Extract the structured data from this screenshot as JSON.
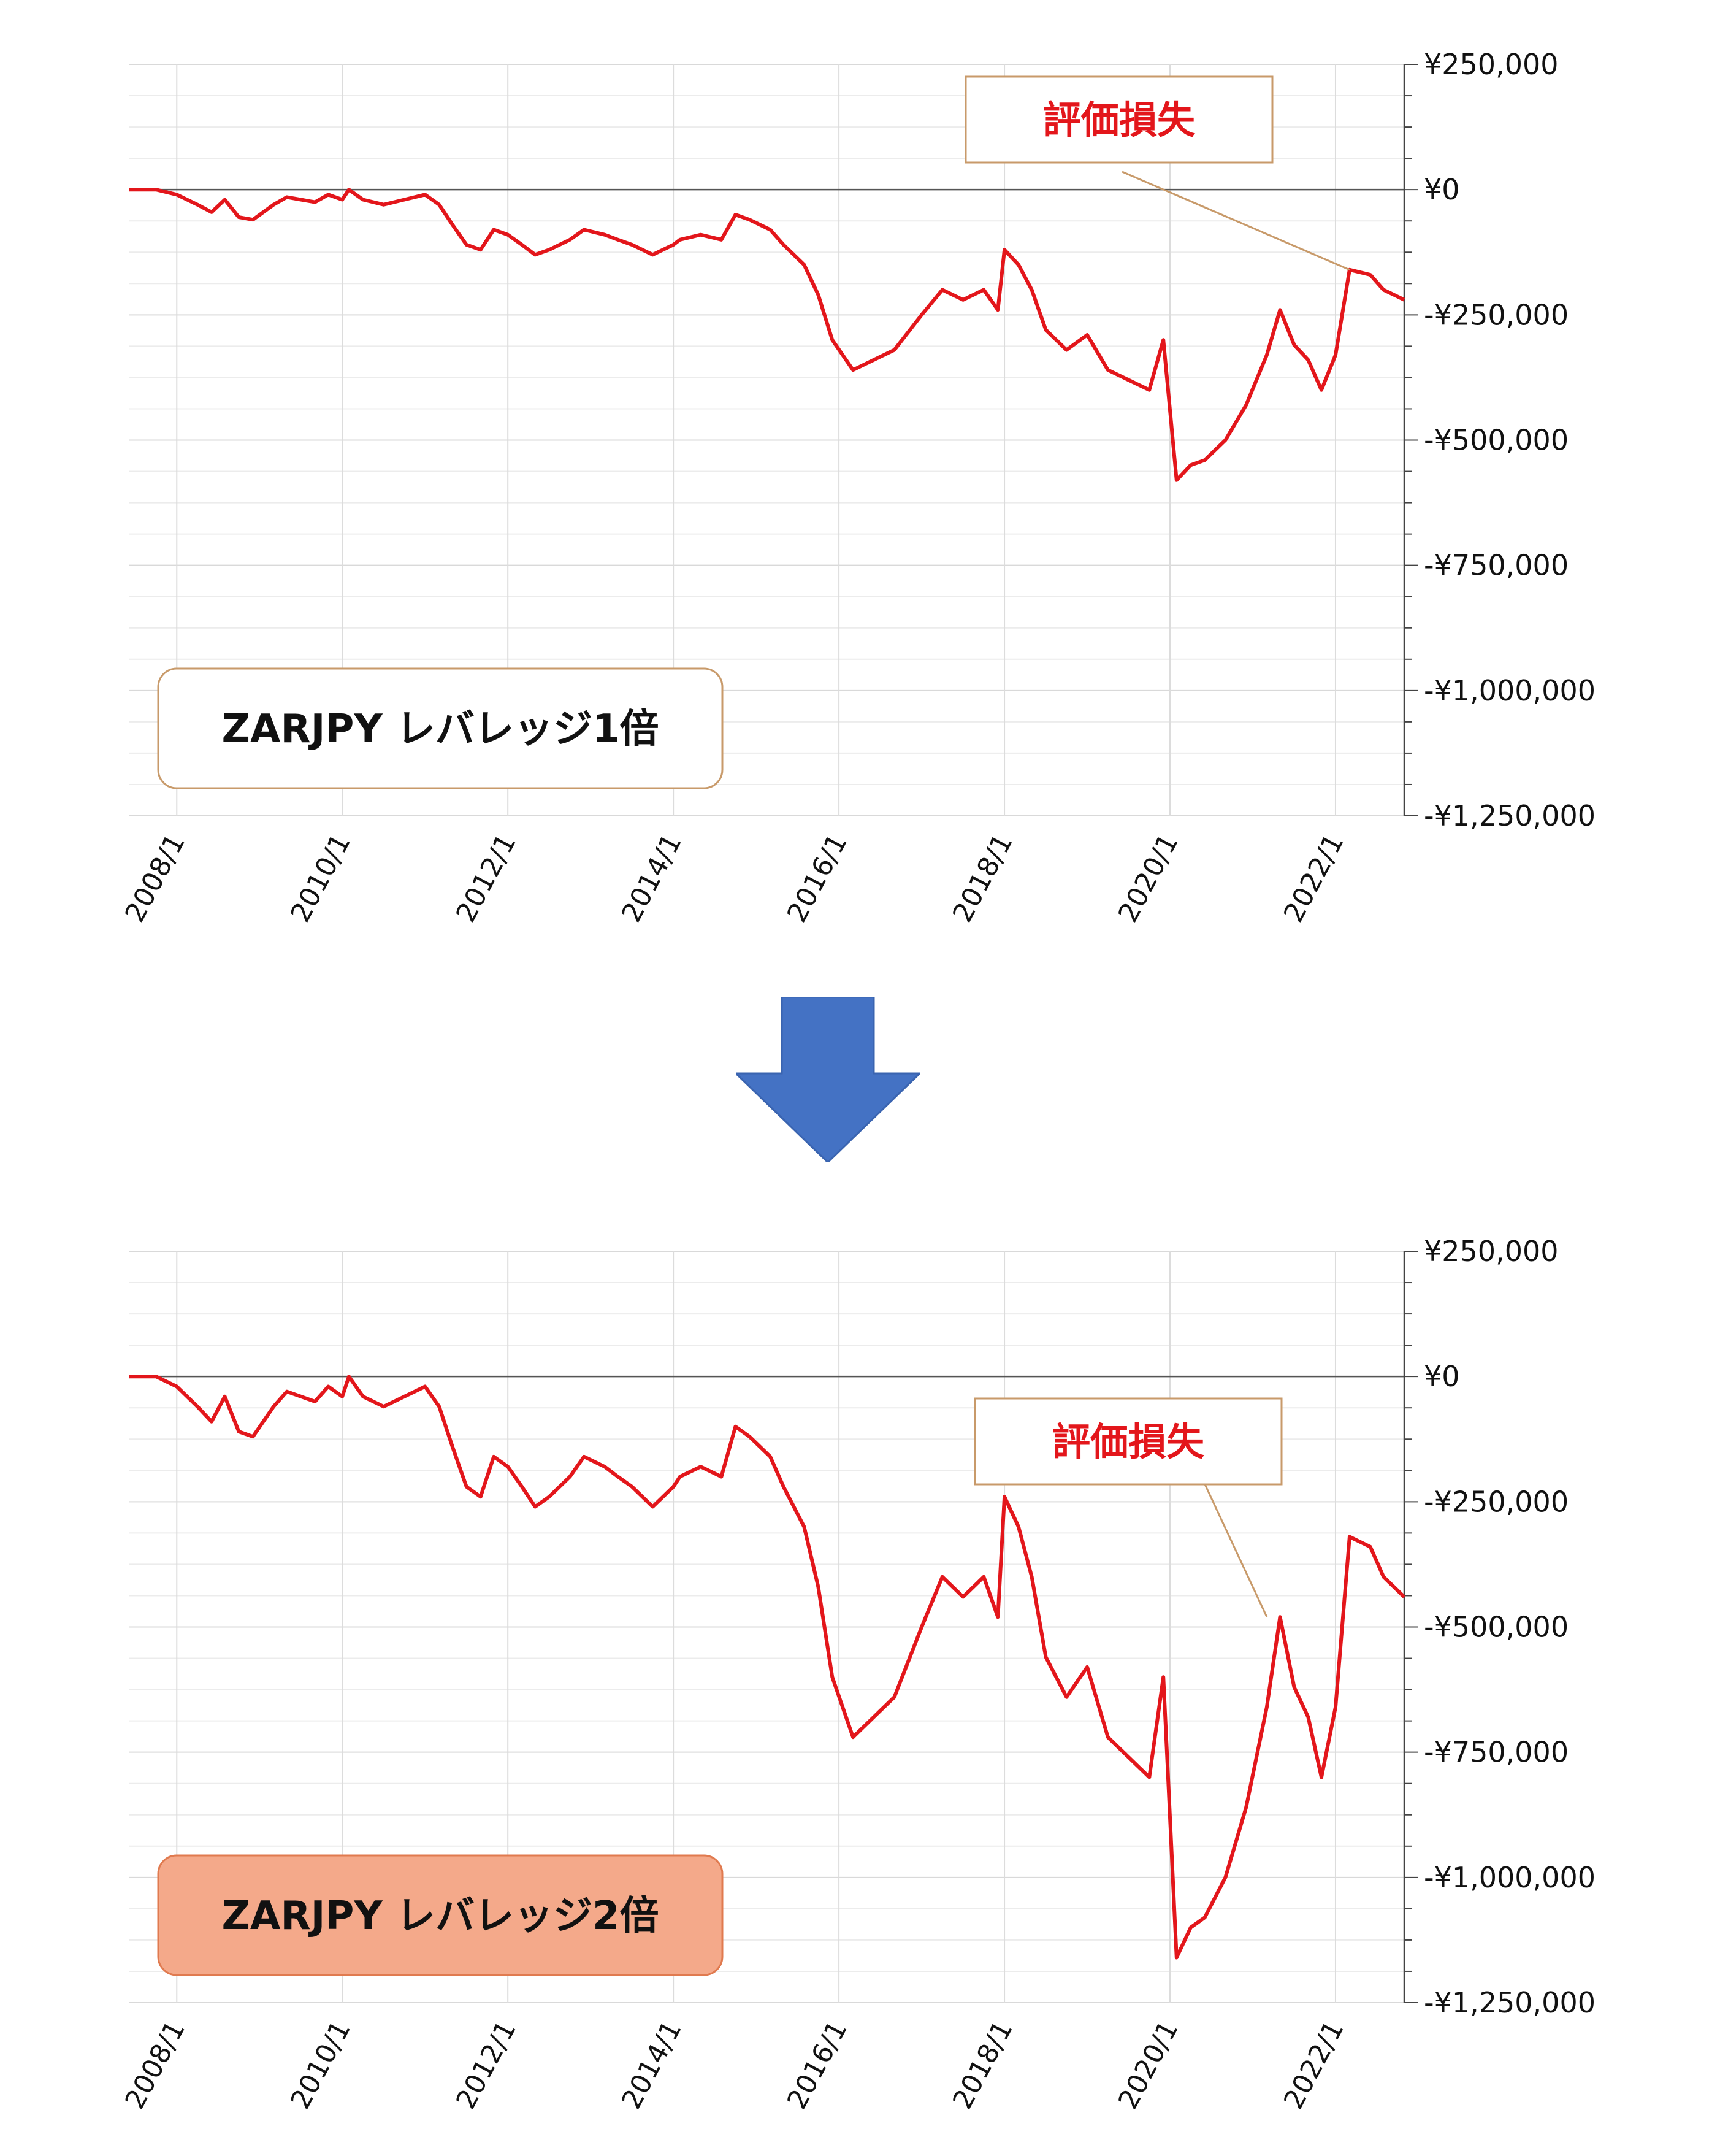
{
  "colors": {
    "line": "#e3161b",
    "callout_text": "#e3161b",
    "callout_border": "#c89a6a",
    "arrow": "#4472c4",
    "label_fill_2x": "#f4a98a"
  },
  "chart_data": [
    {
      "type": "line",
      "label": "ZARJPY レバレッジ1倍",
      "callout": "評価損失",
      "ylim": [
        -1250000,
        250000
      ],
      "y_ticks": [
        {
          "value": 250000,
          "label": "¥250,000"
        },
        {
          "value": 0,
          "label": "¥0"
        },
        {
          "value": -250000,
          "label": "-¥250,000"
        },
        {
          "value": -500000,
          "label": "-¥500,000"
        },
        {
          "value": -750000,
          "label": "-¥750,000"
        },
        {
          "value": -1000000,
          "label": "-¥1,000,000"
        },
        {
          "value": -1250000,
          "label": "-¥1,250,000"
        }
      ],
      "x_ticks": [
        {
          "value": 2008.0,
          "label": "2008/1"
        },
        {
          "value": 2010.0,
          "label": "2010/1"
        },
        {
          "value": 2012.0,
          "label": "2012/1"
        },
        {
          "value": 2014.0,
          "label": "2014/1"
        },
        {
          "value": 2016.0,
          "label": "2016/1"
        },
        {
          "value": 2018.0,
          "label": "2018/1"
        },
        {
          "value": 2020.0,
          "label": "2020/1"
        },
        {
          "value": 2022.0,
          "label": "2022/1"
        }
      ],
      "grid": true,
      "x": [
        2007.42,
        2007.75,
        2008.0,
        2008.25,
        2008.42,
        2008.58,
        2008.75,
        2008.92,
        2009.17,
        2009.33,
        2009.5,
        2009.67,
        2009.83,
        2010.0,
        2010.08,
        2010.25,
        2010.5,
        2010.75,
        2011.0,
        2011.17,
        2011.33,
        2011.5,
        2011.67,
        2011.83,
        2012.0,
        2012.17,
        2012.33,
        2012.5,
        2012.75,
        2012.92,
        2013.17,
        2013.33,
        2013.5,
        2013.75,
        2014.0,
        2014.08,
        2014.33,
        2014.58,
        2014.75,
        2014.92,
        2015.17,
        2015.33,
        2015.58,
        2015.75,
        2015.92,
        2016.17,
        2016.42,
        2016.67,
        2017.0,
        2017.25,
        2017.5,
        2017.75,
        2017.92,
        2018.0,
        2018.17,
        2018.33,
        2018.5,
        2018.75,
        2019.0,
        2019.25,
        2019.5,
        2019.75,
        2019.92,
        2020.08,
        2020.25,
        2020.42,
        2020.67,
        2020.92,
        2021.17,
        2021.33,
        2021.5,
        2021.67,
        2021.83,
        2022.0,
        2022.17,
        2022.42,
        2022.58,
        2022.83
      ],
      "values": [
        0,
        0,
        -10000,
        -30000,
        -45000,
        -20000,
        -55000,
        -60000,
        -30000,
        -15000,
        -20000,
        -25000,
        -10000,
        -20000,
        0,
        -20000,
        -30000,
        -20000,
        -10000,
        -30000,
        -70000,
        -110000,
        -120000,
        -80000,
        -90000,
        -110000,
        -130000,
        -120000,
        -100000,
        -80000,
        -90000,
        -100000,
        -110000,
        -130000,
        -110000,
        -100000,
        -90000,
        -100000,
        -50000,
        -60000,
        -80000,
        -110000,
        -150000,
        -210000,
        -300000,
        -360000,
        -340000,
        -320000,
        -250000,
        -200000,
        -220000,
        -200000,
        -240000,
        -120000,
        -150000,
        -200000,
        -280000,
        -320000,
        -290000,
        -360000,
        -380000,
        -400000,
        -300000,
        -580000,
        -550000,
        -540000,
        -500000,
        -430000,
        -330000,
        -240000,
        -310000,
        -340000,
        -400000,
        -330000,
        -160000,
        -170000,
        -200000,
        -220000
      ]
    },
    {
      "type": "line",
      "label": "ZARJPY レバレッジ2倍",
      "callout": "評価損失",
      "ylim": [
        -1250000,
        250000
      ],
      "y_ticks": [
        {
          "value": 250000,
          "label": "¥250,000"
        },
        {
          "value": 0,
          "label": "¥0"
        },
        {
          "value": -250000,
          "label": "-¥250,000"
        },
        {
          "value": -500000,
          "label": "-¥500,000"
        },
        {
          "value": -750000,
          "label": "-¥750,000"
        },
        {
          "value": -1000000,
          "label": "-¥1,000,000"
        },
        {
          "value": -1250000,
          "label": "-¥1,250,000"
        }
      ],
      "x_ticks": [
        {
          "value": 2008.0,
          "label": "2008/1"
        },
        {
          "value": 2010.0,
          "label": "2010/1"
        },
        {
          "value": 2012.0,
          "label": "2012/1"
        },
        {
          "value": 2014.0,
          "label": "2014/1"
        },
        {
          "value": 2016.0,
          "label": "2016/1"
        },
        {
          "value": 2018.0,
          "label": "2018/1"
        },
        {
          "value": 2020.0,
          "label": "2020/1"
        },
        {
          "value": 2022.0,
          "label": "2022/1"
        }
      ],
      "grid": true,
      "x": [
        2007.42,
        2007.75,
        2008.0,
        2008.25,
        2008.42,
        2008.58,
        2008.75,
        2008.92,
        2009.17,
        2009.33,
        2009.5,
        2009.67,
        2009.83,
        2010.0,
        2010.08,
        2010.25,
        2010.5,
        2010.75,
        2011.0,
        2011.17,
        2011.33,
        2011.5,
        2011.67,
        2011.83,
        2012.0,
        2012.17,
        2012.33,
        2012.5,
        2012.75,
        2012.92,
        2013.17,
        2013.33,
        2013.5,
        2013.75,
        2014.0,
        2014.08,
        2014.33,
        2014.58,
        2014.75,
        2014.92,
        2015.17,
        2015.33,
        2015.58,
        2015.75,
        2015.92,
        2016.17,
        2016.42,
        2016.67,
        2017.0,
        2017.25,
        2017.5,
        2017.75,
        2017.92,
        2018.0,
        2018.17,
        2018.33,
        2018.5,
        2018.75,
        2019.0,
        2019.25,
        2019.5,
        2019.75,
        2019.92,
        2020.08,
        2020.25,
        2020.42,
        2020.67,
        2020.92,
        2021.17,
        2021.33,
        2021.5,
        2021.67,
        2021.83,
        2022.0,
        2022.17,
        2022.42,
        2022.58,
        2022.83
      ],
      "values": [
        0,
        0,
        -20000,
        -60000,
        -90000,
        -40000,
        -110000,
        -120000,
        -60000,
        -30000,
        -40000,
        -50000,
        -20000,
        -40000,
        0,
        -40000,
        -60000,
        -40000,
        -20000,
        -60000,
        -140000,
        -220000,
        -240000,
        -160000,
        -180000,
        -220000,
        -260000,
        -240000,
        -200000,
        -160000,
        -180000,
        -200000,
        -220000,
        -260000,
        -220000,
        -200000,
        -180000,
        -200000,
        -100000,
        -120000,
        -160000,
        -220000,
        -300000,
        -420000,
        -600000,
        -720000,
        -680000,
        -640000,
        -500000,
        -400000,
        -440000,
        -400000,
        -480000,
        -240000,
        -300000,
        -400000,
        -560000,
        -640000,
        -580000,
        -720000,
        -760000,
        -800000,
        -600000,
        -1160000,
        -1100000,
        -1080000,
        -1000000,
        -860000,
        -660000,
        -480000,
        -620000,
        -680000,
        -800000,
        -660000,
        -320000,
        -340000,
        -400000,
        -440000
      ]
    }
  ]
}
